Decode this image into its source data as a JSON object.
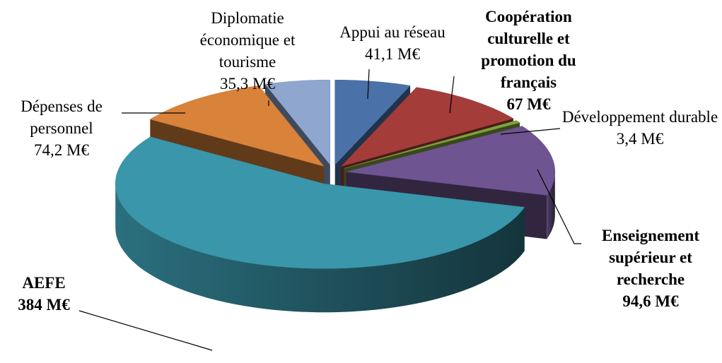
{
  "chart_data": {
    "type": "pie3d",
    "categories": [
      "Appui au réseau",
      "Coopération culturelle et promotion du français",
      "Développement durable",
      "Enseignement supérieur et recherche",
      "AEFE",
      "Dépenses de personnel",
      "Diplomatie économique et tourisme"
    ],
    "values": [
      41.1,
      67,
      3.4,
      94.6,
      384,
      74.2,
      35.3
    ],
    "value_labels": [
      "41,1 M€",
      "67 M€",
      "3,4 M€",
      "94,6 M€",
      "384 M€",
      "74,2 M€",
      "35,3 M€"
    ],
    "colors": [
      "#4a72a8",
      "#a43c3a",
      "#7fa23c",
      "#6e5490",
      "#3a96aa",
      "#d9823a",
      "#8fa6cf"
    ],
    "bold_labels": [
      false,
      true,
      false,
      true,
      true,
      false,
      false
    ]
  }
}
